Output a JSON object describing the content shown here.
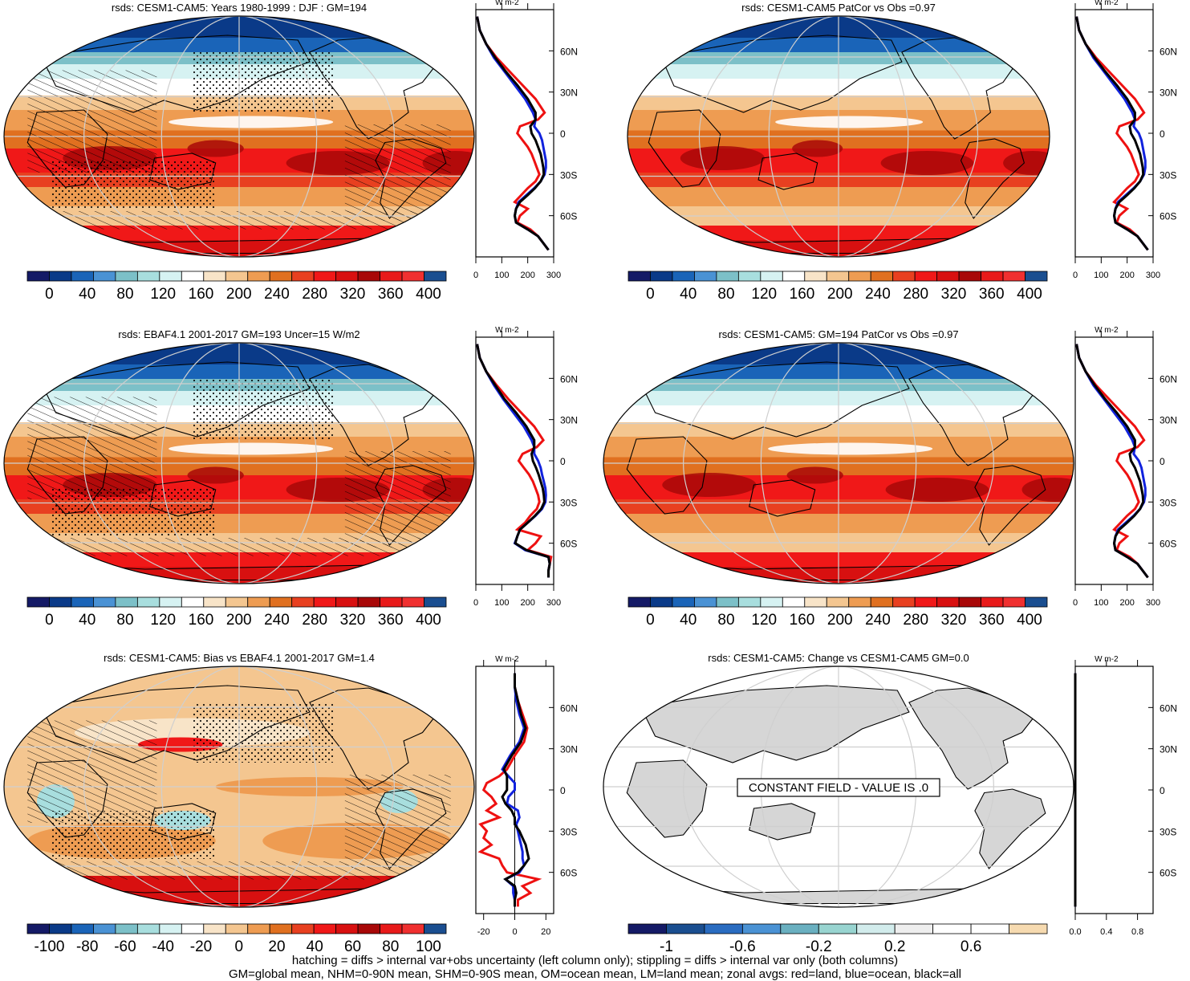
{
  "chart_data": [
    {
      "type": "heatmap",
      "title": "rsds: CESM1-CAM5: Years 1980-1999 : DJF : GM=194",
      "colorbar_ticks": [
        "0",
        "40",
        "80",
        "120",
        "160",
        "200",
        "240",
        "280",
        "320",
        "360",
        "400"
      ],
      "zonal": {
        "xlabel": "W m-2",
        "xticks": [
          "0",
          "100",
          "200",
          "300"
        ],
        "yticks": [
          "60N",
          "30N",
          "0",
          "30S",
          "60S"
        ],
        "xlim": [
          0,
          300
        ],
        "lat": [
          85,
          75,
          65,
          55,
          45,
          35,
          25,
          15,
          10,
          5,
          0,
          -5,
          -10,
          -15,
          -20,
          -25,
          -30,
          -35,
          -40,
          -45,
          -50,
          -55,
          -60,
          -65,
          -70,
          -75,
          -80,
          -85
        ],
        "land": [
          5,
          15,
          40,
          80,
          130,
          180,
          230,
          265,
          240,
          170,
          160,
          180,
          200,
          215,
          225,
          235,
          245,
          230,
          200,
          175,
          150,
          200,
          170,
          160,
          210,
          240,
          260,
          280
        ],
        "ocean": [
          5,
          15,
          40,
          70,
          110,
          150,
          190,
          220,
          230,
          225,
          245,
          255,
          260,
          265,
          270,
          270,
          265,
          250,
          225,
          195,
          165,
          155,
          150,
          155,
          200,
          240,
          260,
          280
        ],
        "all": [
          5,
          15,
          40,
          75,
          115,
          160,
          200,
          230,
          230,
          210,
          215,
          230,
          240,
          250,
          255,
          260,
          262,
          250,
          228,
          200,
          170,
          155,
          150,
          155,
          200,
          240,
          260,
          280
        ]
      }
    },
    {
      "type": "heatmap",
      "title": "rsds: CESM1-CAM5 PatCor vs Obs =0.97",
      "colorbar_ticks": [
        "0",
        "40",
        "80",
        "120",
        "160",
        "200",
        "240",
        "280",
        "320",
        "360",
        "400"
      ],
      "zonal": {
        "xlabel": "W m-2",
        "xticks": [
          "0",
          "100",
          "200",
          "300"
        ],
        "yticks": [
          "60N",
          "30N",
          "0",
          "30S",
          "60S"
        ],
        "xlim": [
          0,
          300
        ],
        "lat": [
          85,
          75,
          65,
          55,
          45,
          35,
          25,
          15,
          10,
          5,
          0,
          -5,
          -10,
          -15,
          -20,
          -25,
          -30,
          -35,
          -40,
          -45,
          -50,
          -55,
          -60,
          -65,
          -70,
          -75,
          -80,
          -85
        ],
        "land": [
          5,
          15,
          40,
          80,
          130,
          180,
          230,
          265,
          240,
          170,
          160,
          180,
          200,
          215,
          225,
          235,
          245,
          230,
          200,
          175,
          150,
          200,
          170,
          160,
          210,
          240,
          260,
          280
        ],
        "ocean": [
          5,
          15,
          40,
          70,
          110,
          150,
          190,
          220,
          230,
          225,
          245,
          255,
          260,
          265,
          270,
          270,
          265,
          250,
          225,
          195,
          165,
          155,
          150,
          155,
          200,
          240,
          260,
          280
        ],
        "all": [
          5,
          15,
          40,
          75,
          115,
          160,
          200,
          230,
          230,
          210,
          215,
          230,
          240,
          250,
          255,
          260,
          262,
          250,
          228,
          200,
          170,
          155,
          150,
          155,
          200,
          240,
          260,
          280
        ]
      }
    },
    {
      "type": "heatmap",
      "title": "rsds: EBAF4.1 2001-2017 GM=193 Uncer=15 W/m2",
      "colorbar_ticks": [
        "0",
        "40",
        "80",
        "120",
        "160",
        "200",
        "240",
        "280",
        "320",
        "360",
        "400"
      ],
      "zonal": {
        "xlabel": "W m-2",
        "xticks": [
          "0",
          "100",
          "200",
          "300"
        ],
        "yticks": [
          "60N",
          "30N",
          "0",
          "30S",
          "60S"
        ],
        "xlim": [
          0,
          300
        ],
        "lat": [
          85,
          75,
          65,
          55,
          45,
          35,
          25,
          15,
          10,
          5,
          0,
          -5,
          -10,
          -15,
          -20,
          -25,
          -30,
          -35,
          -40,
          -45,
          -50,
          -55,
          -60,
          -65,
          -70,
          -75,
          -80,
          -85
        ],
        "land": [
          5,
          15,
          40,
          80,
          125,
          175,
          225,
          260,
          235,
          180,
          165,
          185,
          205,
          220,
          230,
          240,
          245,
          235,
          210,
          190,
          160,
          250,
          230,
          200,
          290,
          285,
          280,
          280
        ],
        "ocean": [
          5,
          15,
          40,
          70,
          105,
          145,
          185,
          215,
          225,
          225,
          240,
          250,
          255,
          262,
          268,
          270,
          268,
          255,
          230,
          200,
          170,
          160,
          150,
          190,
          280,
          285,
          280,
          280
        ],
        "all": [
          5,
          15,
          40,
          75,
          110,
          155,
          195,
          225,
          225,
          215,
          220,
          232,
          242,
          250,
          258,
          262,
          264,
          252,
          228,
          200,
          170,
          160,
          152,
          195,
          280,
          285,
          280,
          280
        ]
      }
    },
    {
      "type": "heatmap",
      "title": "rsds: CESM1-CAM5: GM=194 PatCor vs Obs =0.97",
      "colorbar_ticks": [
        "0",
        "40",
        "80",
        "120",
        "160",
        "200",
        "240",
        "280",
        "320",
        "360",
        "400"
      ],
      "zonal": {
        "xlabel": "W m-2",
        "xticks": [
          "0",
          "100",
          "200",
          "300"
        ],
        "yticks": [
          "60N",
          "30N",
          "0",
          "30S",
          "60S"
        ],
        "xlim": [
          0,
          300
        ],
        "lat": [
          85,
          75,
          65,
          55,
          45,
          35,
          25,
          15,
          10,
          5,
          0,
          -5,
          -10,
          -15,
          -20,
          -25,
          -30,
          -35,
          -40,
          -45,
          -50,
          -55,
          -60,
          -65,
          -70,
          -75,
          -80,
          -85
        ],
        "land": [
          5,
          15,
          40,
          80,
          130,
          180,
          230,
          265,
          240,
          170,
          160,
          180,
          200,
          215,
          225,
          235,
          245,
          230,
          200,
          175,
          150,
          200,
          170,
          160,
          210,
          240,
          260,
          280
        ],
        "ocean": [
          5,
          15,
          40,
          70,
          110,
          150,
          190,
          220,
          230,
          225,
          245,
          255,
          260,
          265,
          270,
          270,
          265,
          250,
          225,
          195,
          165,
          155,
          150,
          155,
          200,
          240,
          260,
          280
        ],
        "all": [
          5,
          15,
          40,
          75,
          115,
          160,
          200,
          230,
          230,
          210,
          215,
          230,
          240,
          250,
          255,
          260,
          262,
          250,
          228,
          200,
          170,
          155,
          150,
          155,
          200,
          240,
          260,
          280
        ]
      }
    },
    {
      "type": "heatmap",
      "title": "rsds: CESM1-CAM5: Bias vs EBAF4.1 2001-2017 GM=1.4",
      "colorbar_ticks": [
        "-100",
        "-80",
        "-60",
        "-40",
        "-20",
        "0",
        "20",
        "40",
        "60",
        "80",
        "100"
      ],
      "zonal": {
        "xlabel": "W m-2",
        "xticks": [
          "-20",
          "0",
          "20"
        ],
        "yticks": [
          "60N",
          "30N",
          "0",
          "30S",
          "60S"
        ],
        "xlim": [
          -25,
          25
        ],
        "lat": [
          85,
          75,
          65,
          55,
          45,
          35,
          25,
          15,
          10,
          5,
          0,
          -5,
          -10,
          -15,
          -20,
          -25,
          -30,
          -35,
          -40,
          -45,
          -50,
          -55,
          -60,
          -65,
          -70,
          -75,
          -80,
          -85
        ],
        "land": [
          0,
          0,
          2,
          5,
          8,
          6,
          0,
          -5,
          -10,
          -18,
          -20,
          -15,
          -12,
          -18,
          -10,
          -22,
          -18,
          -20,
          -15,
          -22,
          -10,
          -8,
          -5,
          15,
          5,
          10,
          2,
          2
        ],
        "ocean": [
          0,
          0,
          1,
          3,
          6,
          3,
          -3,
          -8,
          -4,
          0,
          0,
          -4,
          -5,
          2,
          3,
          1,
          2,
          3,
          4,
          5,
          5,
          6,
          3,
          -6,
          -1,
          -1,
          0,
          0
        ],
        "all": [
          0,
          0,
          2,
          4,
          7,
          4,
          -2,
          -7,
          -5,
          -5,
          -5,
          -8,
          -6,
          -2,
          0,
          0,
          3,
          5,
          7,
          8,
          9,
          6,
          2,
          -6,
          0,
          1,
          0,
          0
        ]
      }
    },
    {
      "type": "heatmap",
      "title": "rsds: CESM1-CAM5: Change vs CESM1-CAM5 GM=0.0",
      "annotation": "CONSTANT FIELD - VALUE IS .0",
      "colorbar_ticks": [
        "-1",
        "-0.6",
        "-0.2",
        "0.2",
        "0.6"
      ],
      "zonal": {
        "xlabel": "W m-2",
        "xticks": [
          "0.0",
          "0.4",
          "0.8"
        ],
        "yticks": [
          "60N",
          "30N",
          "0",
          "30S",
          "60S"
        ],
        "xlim": [
          0,
          1
        ],
        "lat": [
          85,
          -85
        ],
        "land": [
          0,
          0
        ],
        "ocean": [
          0,
          0
        ],
        "all": [
          0,
          0
        ]
      }
    }
  ],
  "footer": {
    "line1": "hatching = diffs > internal var+obs uncertainty (left column only); stippling = diffs > internal var only (both columns)",
    "line2": "GM=global mean, NHM=0-90N mean, SHM=0-90S mean, OM=ocean mean, LM=land mean; zonal avgs: red=land, blue=ocean, black=all"
  },
  "colors": {
    "land": "#ee1111",
    "ocean": "#1122dd",
    "all": "#000000",
    "map_land_gray": "#d6d6d6"
  },
  "palette_rsds": [
    "#141a66",
    "#0a3a88",
    "#1a64b8",
    "#4a92d4",
    "#7cc0c8",
    "#a8dede",
    "#d6f2f2",
    "#ffffff",
    "#f8e4c8",
    "#f4c690",
    "#ee9c52",
    "#e07020",
    "#e84020",
    "#f01818",
    "#d81010",
    "#a80808",
    "#e81a1a",
    "#f03030",
    "#1a4e90"
  ],
  "palette_bias": [
    "#141a66",
    "#0a3a88",
    "#1a64b8",
    "#4a92d4",
    "#7cc0c8",
    "#a8dede",
    "#d6f2f2",
    "#ffffff",
    "#f8e4c8",
    "#f4c690",
    "#ee9c52",
    "#e07020",
    "#e84020",
    "#f01818",
    "#d81010",
    "#a80808",
    "#e81a1a",
    "#f03030",
    "#1a4e90"
  ],
  "palette_change": [
    "#141a66",
    "#1a4e90",
    "#2a6cc0",
    "#4a92d4",
    "#6ab0c0",
    "#98d4d0",
    "#d2ecec",
    "#eeeeee",
    "#ffffff",
    "#ffffff",
    "#f6dab0"
  ]
}
